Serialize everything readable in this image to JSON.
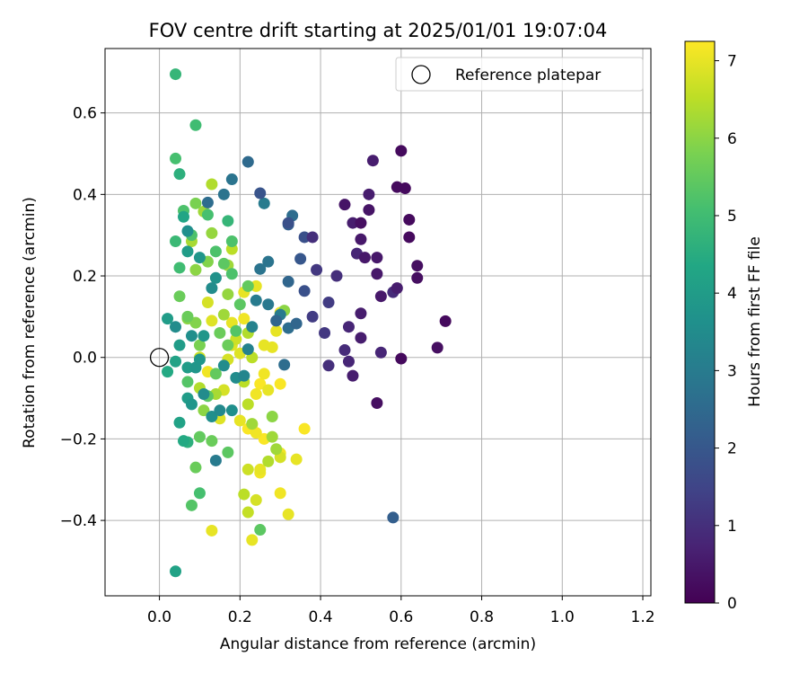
{
  "chart_data": {
    "type": "scatter",
    "title": "FOV centre drift starting at 2025/01/01 19:07:04",
    "xlabel": "Angular distance from reference (arcmin)",
    "ylabel": "Rotation from reference (arcmin)",
    "colorbar_label": "Hours from first FF file",
    "colormap": "viridis",
    "xlim": [
      -0.135,
      1.22
    ],
    "ylim": [
      -0.585,
      0.758
    ],
    "clim": [
      0,
      7.25
    ],
    "xticks": [
      0.0,
      0.2,
      0.4,
      0.6,
      0.8,
      1.0,
      1.2
    ],
    "xtick_labels": [
      "0.0",
      "0.2",
      "0.4",
      "0.6",
      "0.8",
      "1.0",
      "1.2"
    ],
    "yticks": [
      -0.4,
      -0.2,
      0.0,
      0.2,
      0.4,
      0.6
    ],
    "ytick_labels": [
      "−0.4",
      "−0.2",
      "0.0",
      "0.2",
      "0.4",
      "0.6"
    ],
    "cticks": [
      0,
      1,
      2,
      3,
      4,
      5,
      6,
      7
    ],
    "ctick_labels": [
      "0",
      "1",
      "2",
      "3",
      "4",
      "5",
      "6",
      "7"
    ],
    "grid": true,
    "legend": {
      "position": "top-right",
      "entries": [
        "Reference platepar"
      ]
    },
    "reference_point": {
      "x": 0.0,
      "y": 0.0
    },
    "series": [
      {
        "values": [
          {
            "x": 0.6,
            "y": 0.507,
            "h": 0.2
          },
          {
            "x": 0.59,
            "y": 0.418,
            "h": 0.2
          },
          {
            "x": 0.61,
            "y": 0.415,
            "h": 0.2
          },
          {
            "x": 0.62,
            "y": 0.338,
            "h": 0.2
          },
          {
            "x": 0.62,
            "y": 0.295,
            "h": 0.2
          },
          {
            "x": 0.64,
            "y": 0.225,
            "h": 0.3
          },
          {
            "x": 0.64,
            "y": 0.195,
            "h": 0.3
          },
          {
            "x": 0.71,
            "y": 0.089,
            "h": 0.2
          },
          {
            "x": 0.69,
            "y": 0.024,
            "h": 0.3
          },
          {
            "x": 0.6,
            "y": -0.003,
            "h": 0.2
          },
          {
            "x": 0.54,
            "y": -0.112,
            "h": 0.3
          },
          {
            "x": 0.53,
            "y": 0.483,
            "h": 0.6
          },
          {
            "x": 0.52,
            "y": 0.4,
            "h": 0.6
          },
          {
            "x": 0.52,
            "y": 0.362,
            "h": 0.4
          },
          {
            "x": 0.5,
            "y": 0.33,
            "h": 0.3
          },
          {
            "x": 0.48,
            "y": 0.33,
            "h": 0.6
          },
          {
            "x": 0.46,
            "y": 0.375,
            "h": 0.4
          },
          {
            "x": 0.5,
            "y": 0.29,
            "h": 0.5
          },
          {
            "x": 0.49,
            "y": 0.255,
            "h": 0.8
          },
          {
            "x": 0.51,
            "y": 0.245,
            "h": 0.5
          },
          {
            "x": 0.54,
            "y": 0.245,
            "h": 0.5
          },
          {
            "x": 0.55,
            "y": 0.15,
            "h": 0.5
          },
          {
            "x": 0.54,
            "y": 0.205,
            "h": 0.5
          },
          {
            "x": 0.59,
            "y": 0.17,
            "h": 0.6
          },
          {
            "x": 0.5,
            "y": 0.108,
            "h": 0.6
          },
          {
            "x": 0.47,
            "y": 0.075,
            "h": 0.8
          },
          {
            "x": 0.5,
            "y": 0.048,
            "h": 0.6
          },
          {
            "x": 0.46,
            "y": 0.018,
            "h": 0.9
          },
          {
            "x": 0.47,
            "y": -0.01,
            "h": 0.8
          },
          {
            "x": 0.48,
            "y": -0.045,
            "h": 0.6
          },
          {
            "x": 0.42,
            "y": -0.02,
            "h": 1.0
          },
          {
            "x": 0.55,
            "y": 0.012,
            "h": 0.8
          },
          {
            "x": 0.58,
            "y": 0.16,
            "h": 0.9
          },
          {
            "x": 0.44,
            "y": 0.2,
            "h": 1.0
          },
          {
            "x": 0.39,
            "y": 0.215,
            "h": 1.2
          },
          {
            "x": 0.42,
            "y": 0.135,
            "h": 1.3
          },
          {
            "x": 0.41,
            "y": 0.06,
            "h": 1.2
          },
          {
            "x": 0.38,
            "y": 0.1,
            "h": 1.3
          },
          {
            "x": 0.38,
            "y": 0.295,
            "h": 1.0
          },
          {
            "x": 0.36,
            "y": 0.295,
            "h": 1.8
          },
          {
            "x": 0.36,
            "y": 0.163,
            "h": 1.8
          },
          {
            "x": 0.35,
            "y": 0.242,
            "h": 2.0
          },
          {
            "x": 0.32,
            "y": 0.33,
            "h": 1.8
          },
          {
            "x": 0.33,
            "y": 0.348,
            "h": 2.6
          },
          {
            "x": 0.32,
            "y": 0.326,
            "h": 2.2
          },
          {
            "x": 0.25,
            "y": 0.403,
            "h": 1.9
          },
          {
            "x": 0.22,
            "y": 0.48,
            "h": 2.5
          },
          {
            "x": 0.58,
            "y": -0.393,
            "h": 2.2
          },
          {
            "x": 0.32,
            "y": 0.186,
            "h": 2.4
          },
          {
            "x": 0.34,
            "y": 0.083,
            "h": 2.4
          },
          {
            "x": 0.32,
            "y": 0.072,
            "h": 2.6
          },
          {
            "x": 0.29,
            "y": 0.09,
            "h": 2.4
          },
          {
            "x": 0.27,
            "y": 0.235,
            "h": 2.8
          },
          {
            "x": 0.25,
            "y": 0.217,
            "h": 2.8
          },
          {
            "x": 0.26,
            "y": 0.378,
            "h": 3.0
          },
          {
            "x": 0.18,
            "y": 0.437,
            "h": 2.8
          },
          {
            "x": 0.16,
            "y": 0.4,
            "h": 2.8
          },
          {
            "x": 0.12,
            "y": 0.38,
            "h": 2.6
          },
          {
            "x": 0.27,
            "y": 0.13,
            "h": 2.9
          },
          {
            "x": 0.31,
            "y": -0.018,
            "h": 2.6
          },
          {
            "x": 0.3,
            "y": 0.105,
            "h": 3.0
          },
          {
            "x": 0.24,
            "y": 0.14,
            "h": 3.0
          },
          {
            "x": 0.23,
            "y": 0.075,
            "h": 3.2
          },
          {
            "x": 0.22,
            "y": 0.02,
            "h": 3.2
          },
          {
            "x": 0.21,
            "y": -0.045,
            "h": 3.3
          },
          {
            "x": 0.19,
            "y": -0.05,
            "h": 3.5
          },
          {
            "x": 0.16,
            "y": -0.02,
            "h": 3.5
          },
          {
            "x": 0.15,
            "y": -0.13,
            "h": 3.4
          },
          {
            "x": 0.14,
            "y": -0.253,
            "h": 3.0
          },
          {
            "x": 0.13,
            "y": -0.145,
            "h": 3.6
          },
          {
            "x": 0.18,
            "y": -0.13,
            "h": 3.6
          },
          {
            "x": 0.11,
            "y": -0.09,
            "h": 3.5
          },
          {
            "x": 0.08,
            "y": -0.115,
            "h": 3.8
          },
          {
            "x": 0.07,
            "y": -0.1,
            "h": 4.0
          },
          {
            "x": 0.09,
            "y": -0.025,
            "h": 3.8
          },
          {
            "x": 0.07,
            "y": -0.025,
            "h": 4.0
          },
          {
            "x": 0.1,
            "y": -0.005,
            "h": 3.8
          },
          {
            "x": 0.11,
            "y": 0.053,
            "h": 3.8
          },
          {
            "x": 0.08,
            "y": 0.053,
            "h": 3.6
          },
          {
            "x": 0.05,
            "y": 0.03,
            "h": 4.0
          },
          {
            "x": 0.04,
            "y": 0.075,
            "h": 3.5
          },
          {
            "x": 0.13,
            "y": 0.17,
            "h": 3.5
          },
          {
            "x": 0.14,
            "y": 0.195,
            "h": 3.7
          },
          {
            "x": 0.1,
            "y": 0.245,
            "h": 3.8
          },
          {
            "x": 0.07,
            "y": 0.26,
            "h": 4.0
          },
          {
            "x": 0.07,
            "y": 0.31,
            "h": 3.6
          },
          {
            "x": 0.06,
            "y": 0.345,
            "h": 4.3
          },
          {
            "x": 0.02,
            "y": 0.095,
            "h": 4.0
          },
          {
            "x": 0.04,
            "y": -0.01,
            "h": 4.2
          },
          {
            "x": 0.02,
            "y": -0.035,
            "h": 4.4
          },
          {
            "x": 0.05,
            "y": -0.16,
            "h": 4.2
          },
          {
            "x": 0.06,
            "y": -0.205,
            "h": 4.4
          },
          {
            "x": 0.07,
            "y": -0.208,
            "h": 4.6
          },
          {
            "x": 0.04,
            "y": -0.525,
            "h": 4.2
          },
          {
            "x": 0.04,
            "y": 0.695,
            "h": 4.8
          },
          {
            "x": 0.09,
            "y": 0.57,
            "h": 5.0
          },
          {
            "x": 0.04,
            "y": 0.488,
            "h": 5.1
          },
          {
            "x": 0.05,
            "y": 0.45,
            "h": 4.6
          },
          {
            "x": 0.06,
            "y": 0.36,
            "h": 5.2
          },
          {
            "x": 0.04,
            "y": 0.285,
            "h": 4.9
          },
          {
            "x": 0.05,
            "y": 0.22,
            "h": 5.0
          },
          {
            "x": 0.08,
            "y": 0.3,
            "h": 5.2
          },
          {
            "x": 0.12,
            "y": 0.35,
            "h": 5.1
          },
          {
            "x": 0.14,
            "y": 0.26,
            "h": 5.2
          },
          {
            "x": 0.17,
            "y": 0.335,
            "h": 4.8
          },
          {
            "x": 0.18,
            "y": 0.285,
            "h": 5.2
          },
          {
            "x": 0.16,
            "y": 0.23,
            "h": 5.4
          },
          {
            "x": 0.18,
            "y": 0.205,
            "h": 5.2
          },
          {
            "x": 0.2,
            "y": 0.13,
            "h": 5.4
          },
          {
            "x": 0.22,
            "y": 0.175,
            "h": 5.5
          },
          {
            "x": 0.19,
            "y": 0.065,
            "h": 5.3
          },
          {
            "x": 0.17,
            "y": 0.03,
            "h": 5.6
          },
          {
            "x": 0.15,
            "y": 0.06,
            "h": 5.6
          },
          {
            "x": 0.14,
            "y": -0.04,
            "h": 5.5
          },
          {
            "x": 0.12,
            "y": -0.095,
            "h": 5.4
          },
          {
            "x": 0.1,
            "y": -0.195,
            "h": 5.5
          },
          {
            "x": 0.13,
            "y": -0.205,
            "h": 5.6
          },
          {
            "x": 0.09,
            "y": -0.27,
            "h": 5.6
          },
          {
            "x": 0.1,
            "y": -0.333,
            "h": 5.1
          },
          {
            "x": 0.08,
            "y": -0.363,
            "h": 5.3
          },
          {
            "x": 0.25,
            "y": -0.423,
            "h": 5.4
          },
          {
            "x": 0.17,
            "y": -0.233,
            "h": 5.4
          },
          {
            "x": 0.07,
            "y": -0.06,
            "h": 5.3
          },
          {
            "x": 0.05,
            "y": 0.15,
            "h": 5.6
          },
          {
            "x": 0.07,
            "y": 0.1,
            "h": 5.6
          },
          {
            "x": 0.1,
            "y": 0.03,
            "h": 5.8
          },
          {
            "x": 0.12,
            "y": 0.235,
            "h": 5.9
          },
          {
            "x": 0.09,
            "y": 0.378,
            "h": 5.8
          },
          {
            "x": 0.09,
            "y": 0.215,
            "h": 6.0
          },
          {
            "x": 0.13,
            "y": 0.425,
            "h": 6.4
          },
          {
            "x": 0.11,
            "y": 0.358,
            "h": 6.2
          },
          {
            "x": 0.13,
            "y": 0.305,
            "h": 6.1
          },
          {
            "x": 0.17,
            "y": 0.226,
            "h": 6.2
          },
          {
            "x": 0.18,
            "y": 0.266,
            "h": 6.5
          },
          {
            "x": 0.31,
            "y": 0.115,
            "h": 6.0
          },
          {
            "x": 0.23,
            "y": -0.163,
            "h": 6.2
          },
          {
            "x": 0.28,
            "y": -0.145,
            "h": 6.0
          },
          {
            "x": 0.27,
            "y": -0.255,
            "h": 6.4
          },
          {
            "x": 0.28,
            "y": -0.195,
            "h": 6.2
          },
          {
            "x": 0.29,
            "y": -0.225,
            "h": 6.2
          },
          {
            "x": 0.21,
            "y": -0.336,
            "h": 6.5
          },
          {
            "x": 0.22,
            "y": -0.275,
            "h": 6.7
          },
          {
            "x": 0.22,
            "y": -0.38,
            "h": 6.6
          },
          {
            "x": 0.24,
            "y": -0.35,
            "h": 6.8
          },
          {
            "x": 0.3,
            "y": -0.245,
            "h": 6.8
          },
          {
            "x": 0.22,
            "y": 0.06,
            "h": 6.4
          },
          {
            "x": 0.19,
            "y": 0.045,
            "h": 6.7
          },
          {
            "x": 0.16,
            "y": -0.08,
            "h": 6.8
          },
          {
            "x": 0.15,
            "y": -0.15,
            "h": 6.9
          },
          {
            "x": 0.13,
            "y": -0.425,
            "h": 7.0
          },
          {
            "x": 0.23,
            "y": -0.448,
            "h": 7.0
          },
          {
            "x": 0.24,
            "y": 0.175,
            "h": 7.0
          },
          {
            "x": 0.21,
            "y": 0.16,
            "h": 7.0
          },
          {
            "x": 0.21,
            "y": 0.095,
            "h": 7.1
          },
          {
            "x": 0.26,
            "y": 0.03,
            "h": 7.0
          },
          {
            "x": 0.28,
            "y": 0.025,
            "h": 7.0
          },
          {
            "x": 0.3,
            "y": 0.11,
            "h": 7.1
          },
          {
            "x": 0.29,
            "y": 0.065,
            "h": 7.0
          },
          {
            "x": 0.26,
            "y": -0.04,
            "h": 7.1
          },
          {
            "x": 0.25,
            "y": -0.065,
            "h": 7.2
          },
          {
            "x": 0.24,
            "y": -0.09,
            "h": 7.1
          },
          {
            "x": 0.27,
            "y": -0.08,
            "h": 7.0
          },
          {
            "x": 0.3,
            "y": -0.065,
            "h": 7.2
          },
          {
            "x": 0.23,
            "y": -0.165,
            "h": 7.1
          },
          {
            "x": 0.22,
            "y": -0.175,
            "h": 7.2
          },
          {
            "x": 0.24,
            "y": -0.185,
            "h": 7.1
          },
          {
            "x": 0.26,
            "y": -0.2,
            "h": 7.2
          },
          {
            "x": 0.25,
            "y": -0.283,
            "h": 7.1
          },
          {
            "x": 0.25,
            "y": -0.275,
            "h": 7.0
          },
          {
            "x": 0.3,
            "y": -0.333,
            "h": 7.1
          },
          {
            "x": 0.32,
            "y": -0.385,
            "h": 7.0
          },
          {
            "x": 0.3,
            "y": -0.235,
            "h": 7.1
          },
          {
            "x": 0.34,
            "y": -0.25,
            "h": 7.0
          },
          {
            "x": 0.36,
            "y": -0.175,
            "h": 7.2
          },
          {
            "x": 0.2,
            "y": -0.155,
            "h": 7.0
          },
          {
            "x": 0.2,
            "y": 0.01,
            "h": 6.9
          },
          {
            "x": 0.18,
            "y": 0.03,
            "h": 6.9
          },
          {
            "x": 0.17,
            "y": -0.005,
            "h": 6.8
          },
          {
            "x": 0.13,
            "y": 0.09,
            "h": 6.9
          },
          {
            "x": 0.12,
            "y": -0.035,
            "h": 7.1
          },
          {
            "x": 0.1,
            "y": 0.0,
            "h": 6.7
          },
          {
            "x": 0.12,
            "y": 0.135,
            "h": 6.8
          },
          {
            "x": 0.18,
            "y": 0.085,
            "h": 7.0
          },
          {
            "x": 0.09,
            "y": 0.085,
            "h": 5.9
          },
          {
            "x": 0.11,
            "y": -0.13,
            "h": 6.0
          },
          {
            "x": 0.07,
            "y": 0.095,
            "h": 6.0
          },
          {
            "x": 0.17,
            "y": 0.155,
            "h": 6.1
          },
          {
            "x": 0.16,
            "y": 0.105,
            "h": 6.2
          },
          {
            "x": 0.14,
            "y": -0.09,
            "h": 6.3
          },
          {
            "x": 0.1,
            "y": -0.075,
            "h": 6.4
          },
          {
            "x": 0.21,
            "y": -0.06,
            "h": 6.5
          },
          {
            "x": 0.22,
            "y": -0.115,
            "h": 6.5
          },
          {
            "x": 0.08,
            "y": 0.285,
            "h": 6.3
          },
          {
            "x": 0.23,
            "y": 0.0,
            "h": 6.5
          }
        ]
      }
    ]
  }
}
